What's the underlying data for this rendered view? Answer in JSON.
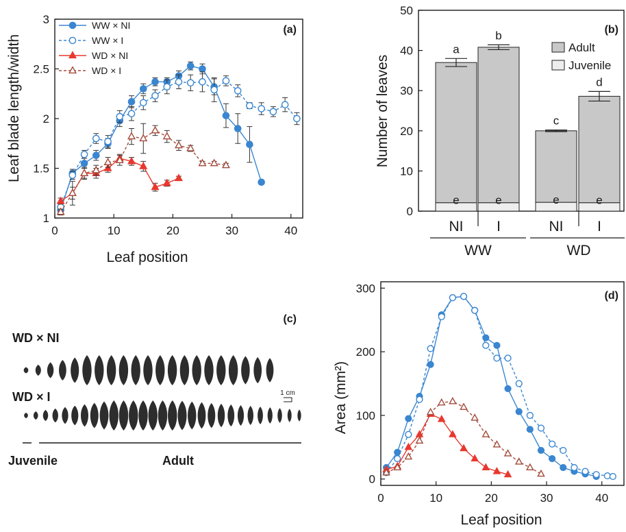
{
  "colors": {
    "ww": "#3a86d0",
    "wd_ni": "#e8382f",
    "wd_i": "#a44a3a",
    "adult": "#c8c8c8",
    "juvenile": "#eeeeee",
    "leaf": "#2d2d2d"
  },
  "chart_data": [
    {
      "panel": "(a)",
      "type": "line",
      "xlabel": "Leaf position",
      "ylabel": "Leaf blade length/width",
      "xlim": [
        0,
        42
      ],
      "ylim": [
        1,
        3
      ],
      "xticks": [
        "0",
        "10",
        "20",
        "30",
        "40"
      ],
      "yticks": [
        "1",
        "1.5",
        "2",
        "2.5",
        "3"
      ],
      "legend_position": "top-left",
      "series": [
        {
          "name": "WW × NI",
          "key": "ww_ni",
          "marker": "filled-circle",
          "dash": false,
          "x": [
            1,
            3,
            5,
            7,
            9,
            11,
            13,
            15,
            17,
            19,
            21,
            23,
            25,
            27,
            29,
            31,
            33,
            35
          ],
          "y": [
            1.08,
            1.45,
            1.55,
            1.63,
            1.75,
            1.98,
            2.17,
            2.3,
            2.37,
            2.37,
            2.43,
            2.53,
            2.5,
            2.32,
            2.03,
            1.9,
            1.74,
            1.36
          ],
          "err": [
            0.03,
            0.04,
            0.05,
            0.05,
            0.05,
            0.06,
            0.06,
            0.05,
            0.04,
            0.04,
            0.05,
            0.04,
            0.05,
            0.08,
            0.12,
            0.15,
            0.18,
            0.0
          ]
        },
        {
          "name": "WW × I",
          "key": "ww_i",
          "marker": "open-circle",
          "dash": true,
          "x": [
            1,
            3,
            5,
            7,
            9,
            11,
            13,
            15,
            17,
            19,
            21,
            23,
            25,
            27,
            29,
            31,
            33,
            35,
            37,
            39,
            41
          ],
          "y": [
            1.11,
            1.43,
            1.64,
            1.8,
            1.77,
            2.02,
            2.05,
            2.16,
            2.23,
            2.32,
            2.37,
            2.36,
            2.37,
            2.29,
            2.38,
            2.28,
            2.13,
            2.1,
            2.07,
            2.14,
            2.0
          ],
          "err": [
            0.04,
            0.04,
            0.04,
            0.05,
            0.06,
            0.06,
            0.07,
            0.07,
            0.06,
            0.07,
            0.07,
            0.08,
            0.1,
            0.12,
            0.05,
            0.06,
            0.03,
            0.06,
            0.05,
            0.07,
            0.06
          ]
        },
        {
          "name": "WD × NI",
          "key": "wd_ni",
          "marker": "filled-triangle",
          "dash": false,
          "x": [
            1,
            3,
            5,
            7,
            9,
            11,
            13,
            15,
            17,
            19,
            21
          ],
          "y": [
            1.17,
            1.25,
            1.45,
            1.45,
            1.5,
            1.6,
            1.57,
            1.52,
            1.31,
            1.35,
            1.4
          ],
          "err": [
            0.03,
            0.06,
            0.05,
            0.05,
            0.04,
            0.04,
            0.04,
            0.05,
            0.04,
            0.03,
            0.02
          ]
        },
        {
          "name": "WD × I",
          "key": "wd_i",
          "marker": "open-triangle",
          "dash": true,
          "x": [
            1,
            3,
            5,
            7,
            9,
            11,
            13,
            15,
            17,
            19,
            21,
            23,
            25,
            27,
            29
          ],
          "y": [
            1.06,
            1.25,
            1.45,
            1.48,
            1.56,
            1.58,
            1.82,
            1.8,
            1.88,
            1.82,
            1.73,
            1.7,
            1.55,
            1.55,
            1.53
          ],
          "err": [
            0.03,
            0.12,
            0.06,
            0.05,
            0.05,
            0.05,
            0.08,
            0.15,
            0.05,
            0.06,
            0.05,
            0.03,
            0.02,
            0.02,
            0.02
          ]
        }
      ]
    },
    {
      "panel": "(b)",
      "type": "bar",
      "ylabel": "Number of leaves",
      "ylim": [
        0,
        50
      ],
      "yticks": [
        "0",
        "10",
        "20",
        "30",
        "40",
        "50"
      ],
      "categories": [
        "NI",
        "I",
        "NI",
        "I"
      ],
      "groups": [
        "WW",
        "WD"
      ],
      "legend_position": "top-right",
      "series": [
        {
          "name": "Adult",
          "key": "adult",
          "values": [
            34.9,
            38.7,
            17.8,
            26.5
          ],
          "err": [
            1.0,
            0.6,
            0.2,
            1.2
          ],
          "letters": [
            "a",
            "b",
            "c",
            "d"
          ]
        },
        {
          "name": "Juvenile",
          "key": "juvenile",
          "values": [
            2.1,
            2.1,
            2.2,
            2.1
          ],
          "letters": [
            "e",
            "e",
            "e",
            "e"
          ]
        }
      ]
    },
    {
      "panel": "(d)",
      "type": "line",
      "xlabel": "Leaf position",
      "ylabel": "Area (mm²)",
      "xlim": [
        0,
        44
      ],
      "ylim": [
        -10,
        310
      ],
      "xticks": [
        "0",
        "10",
        "20",
        "30",
        "40"
      ],
      "yticks": [
        "0",
        "100",
        "200",
        "300"
      ],
      "series": [
        {
          "key": "ww_ni",
          "marker": "filled-circle",
          "dash": false,
          "x": [
            1,
            3,
            5,
            7,
            9,
            11,
            13,
            15,
            17,
            19,
            21,
            23,
            25,
            27,
            29,
            31,
            33,
            35,
            37,
            39
          ],
          "y": [
            18,
            42,
            95,
            130,
            180,
            258,
            285,
            287,
            265,
            222,
            210,
            142,
            106,
            78,
            45,
            32,
            18,
            12,
            8,
            4
          ]
        },
        {
          "key": "ww_i",
          "marker": "open-circle",
          "dash": true,
          "x": [
            1,
            3,
            5,
            7,
            9,
            11,
            13,
            15,
            17,
            19,
            21,
            23,
            25,
            27,
            29,
            31,
            33,
            35,
            37,
            39,
            41,
            42
          ],
          "y": [
            10,
            32,
            70,
            125,
            205,
            255,
            285,
            287,
            265,
            210,
            190,
            190,
            150,
            100,
            80,
            55,
            45,
            18,
            12,
            7,
            5,
            4
          ]
        },
        {
          "key": "wd_ni",
          "marker": "filled-triangle",
          "dash": false,
          "x": [
            1,
            3,
            5,
            7,
            9,
            11,
            13,
            15,
            17,
            19,
            21,
            23
          ],
          "y": [
            15,
            20,
            50,
            70,
            102,
            94,
            70,
            48,
            32,
            18,
            12,
            7
          ]
        },
        {
          "key": "wd_i",
          "marker": "open-triangle",
          "dash": true,
          "x": [
            1,
            3,
            5,
            7,
            9,
            11,
            13,
            15,
            17,
            19,
            21,
            23,
            25,
            27,
            29
          ],
          "y": [
            10,
            18,
            35,
            60,
            105,
            120,
            122,
            113,
            96,
            70,
            54,
            40,
            27,
            18,
            8
          ]
        }
      ]
    }
  ],
  "panel_c": {
    "label": "(c)",
    "row1_label": "WD × NI",
    "row2_label": "WD × I",
    "scale_label": "1 cm",
    "juvenile_label": "Juvenile",
    "adult_label": "Adult",
    "row1_leaf_count": 21,
    "row2_leaf_count": 29
  }
}
